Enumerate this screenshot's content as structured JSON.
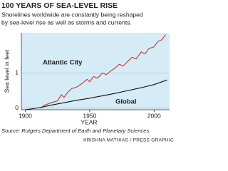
{
  "chart_data": {
    "type": "line",
    "title": "100 YEARS OF SEA-LEVEL RISE",
    "subtitle": [
      "Shorelines worldwide are constantly being reshaped",
      "by sea-level rise as well as storms and currents."
    ],
    "y_label": "Sea level in feet",
    "x_label": "YEAR",
    "source": "Source: Rutgers Department of Earth and Planetary Sciences",
    "credit": "KRISHNA MATHIAS / PRESS GRAPHIC",
    "xlim": [
      1897,
      2012
    ],
    "xticks": [
      1900,
      1950,
      2000
    ],
    "ylim": [
      -0.05,
      2.15
    ],
    "yticks": [
      0,
      1
    ],
    "grid": true,
    "series": [
      {
        "name": "Atlantic City",
        "color": "#c0392b",
        "x": [
          1912,
          1915,
          1920,
          1925,
          1928,
          1930,
          1933,
          1936,
          1940,
          1944,
          1948,
          1950,
          1953,
          1956,
          1960,
          1963,
          1966,
          1970,
          1973,
          1976,
          1980,
          1983,
          1986,
          1990,
          1993,
          1996,
          2000,
          2003,
          2006,
          2009
        ],
        "values": [
          0.0,
          0.08,
          0.15,
          0.2,
          0.38,
          0.3,
          0.45,
          0.55,
          0.6,
          0.7,
          0.82,
          0.75,
          0.9,
          0.85,
          1.0,
          0.95,
          1.05,
          1.15,
          1.25,
          1.2,
          1.35,
          1.45,
          1.4,
          1.6,
          1.55,
          1.7,
          1.75,
          1.9,
          1.95,
          2.1
        ]
      },
      {
        "name": "Global",
        "color": "#111111",
        "x": [
          1900,
          1910,
          1920,
          1930,
          1940,
          1950,
          1960,
          1970,
          1980,
          1990,
          2000,
          2010
        ],
        "values": [
          -0.05,
          0.0,
          0.08,
          0.15,
          0.22,
          0.28,
          0.35,
          0.42,
          0.5,
          0.58,
          0.67,
          0.8
        ]
      }
    ]
  }
}
